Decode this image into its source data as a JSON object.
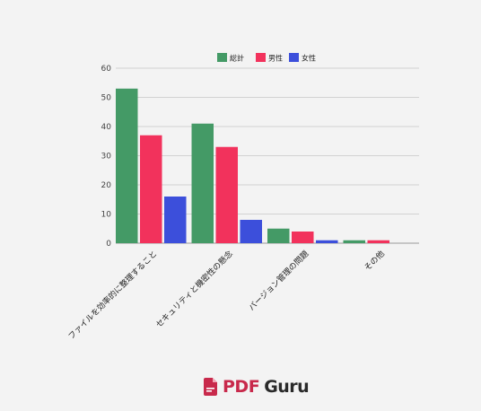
{
  "chart_data": {
    "type": "bar",
    "categories": [
      "ファイルを効率的に整理すること",
      "セキュリティと機密性の懸念",
      "バージョン管理の問題",
      "その他"
    ],
    "series": [
      {
        "name": "総計",
        "values": [
          53,
          41,
          5,
          1
        ],
        "color": "#449a66"
      },
      {
        "name": "男性",
        "values": [
          37,
          33,
          4,
          1
        ],
        "color": "#f2325c"
      },
      {
        "name": "女性",
        "values": [
          16,
          8,
          1,
          0
        ],
        "color": "#3c4fdb"
      }
    ],
    "ylim": [
      0,
      60
    ],
    "yticks": [
      0,
      10,
      20,
      30,
      40,
      50,
      60
    ],
    "grid": true,
    "legend": "top"
  },
  "brand": {
    "pdf": "PDF",
    "guru": "Guru",
    "icon": "pdf-file-icon",
    "color": "#c8294b"
  }
}
